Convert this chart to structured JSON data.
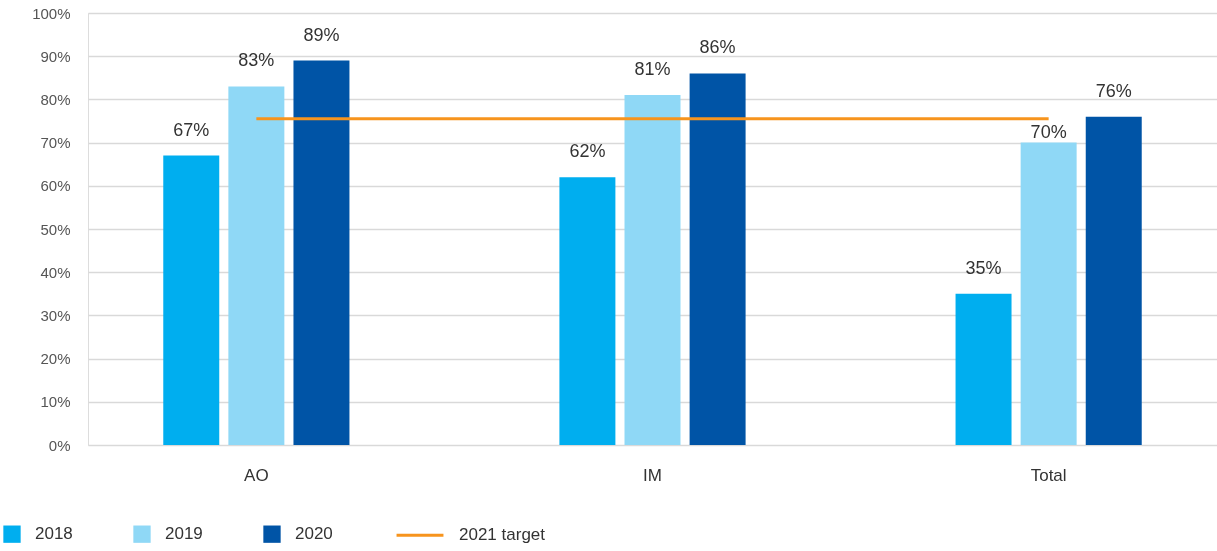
{
  "chart_data": {
    "type": "bar",
    "categories": [
      "AO",
      "IM",
      "Total"
    ],
    "series": [
      {
        "name": "2018",
        "color": "#00aeef",
        "values": [
          67,
          62,
          35
        ],
        "value_labels": [
          "67%",
          "62%",
          "35%"
        ]
      },
      {
        "name": "2019",
        "color": "#8fd8f6",
        "values": [
          83,
          81,
          70
        ],
        "value_labels": [
          "83%",
          "81%",
          "70%"
        ]
      },
      {
        "name": "2020",
        "color": "#0054a6",
        "values": [
          89,
          86,
          76
        ],
        "value_labels": [
          "89%",
          "86%",
          "76%"
        ]
      },
      {
        "name": "2021 target",
        "type": "line",
        "color": "#f7941d",
        "values": [
          75.5,
          75.5,
          75.5
        ]
      }
    ],
    "ylim": [
      0,
      100
    ],
    "yticks": [
      {
        "value": 0,
        "label": "0%"
      },
      {
        "value": 10,
        "label": "10%"
      },
      {
        "value": 20,
        "label": "20%"
      },
      {
        "value": 30,
        "label": "30%"
      },
      {
        "value": 40,
        "label": "40%"
      },
      {
        "value": 50,
        "label": "50%"
      },
      {
        "value": 60,
        "label": "60%"
      },
      {
        "value": 70,
        "label": "70%"
      },
      {
        "value": 80,
        "label": "80%"
      },
      {
        "value": 90,
        "label": "90%"
      },
      {
        "value": 100,
        "label": "100%"
      }
    ],
    "grid": "y",
    "legend": "bottom left"
  }
}
